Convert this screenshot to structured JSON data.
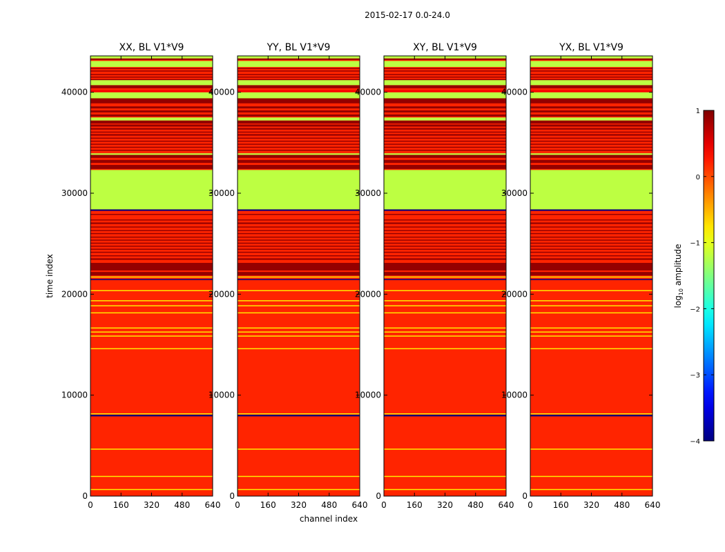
{
  "chart_data": {
    "type": "heatmap",
    "suptitle": "2015-02-17 0.0-24.0",
    "xlabel": "channel index",
    "ylabel": "time index",
    "colorbar_label": "log10 amplitude",
    "colormap": "jet",
    "color_range": [
      -4,
      1
    ],
    "xlim": [
      0,
      640
    ],
    "ylim": [
      0,
      43600
    ],
    "x_ticks": [
      0,
      160,
      320,
      480,
      640
    ],
    "y_ticks": [
      0,
      10000,
      20000,
      30000,
      40000
    ],
    "colorbar_ticks": [
      -4,
      -3,
      -2,
      -1,
      0,
      1
    ],
    "panels": [
      {
        "title": "XX, BL V1*V9"
      },
      {
        "title": "YY, BL V1*V9"
      },
      {
        "title": "XY, BL V1*V9"
      },
      {
        "title": "YX, BL V1*V9"
      }
    ],
    "base_level": 0.2,
    "bands": [
      {
        "t0": 600,
        "t1": 700,
        "level": -0.8
      },
      {
        "t0": 1900,
        "t1": 2000,
        "level": -0.8
      },
      {
        "t0": 4600,
        "t1": 4700,
        "level": -0.8
      },
      {
        "t0": 7900,
        "t1": 8050,
        "level": -4
      },
      {
        "t0": 8100,
        "t1": 8200,
        "level": -0.8
      },
      {
        "t0": 14550,
        "t1": 14650,
        "level": -0.8
      },
      {
        "t0": 15800,
        "t1": 15900,
        "level": -0.8
      },
      {
        "t0": 16200,
        "t1": 16300,
        "level": -0.8
      },
      {
        "t0": 16600,
        "t1": 16700,
        "level": -0.8
      },
      {
        "t0": 18100,
        "t1": 18200,
        "level": -0.8
      },
      {
        "t0": 18800,
        "t1": 18900,
        "level": -0.8
      },
      {
        "t0": 19300,
        "t1": 19400,
        "level": -0.8
      },
      {
        "t0": 20300,
        "t1": 20400,
        "level": -0.8
      },
      {
        "t0": 21400,
        "t1": 21500,
        "level": -4
      },
      {
        "t0": 21650,
        "t1": 21750,
        "level": -0.8
      },
      {
        "t0": 21850,
        "t1": 22200,
        "level": 0.9
      },
      {
        "t0": 22350,
        "t1": 23100,
        "level": 0.9
      },
      {
        "t0": 23400,
        "t1": 23550,
        "level": 0.9
      },
      {
        "t0": 23750,
        "t1": 23850,
        "level": 0.9
      },
      {
        "t0": 24100,
        "t1": 24200,
        "level": 0.9
      },
      {
        "t0": 24400,
        "t1": 24500,
        "level": 0.9
      },
      {
        "t0": 24700,
        "t1": 24800,
        "level": 0.9
      },
      {
        "t0": 25000,
        "t1": 25100,
        "level": 0.9
      },
      {
        "t0": 25300,
        "t1": 25400,
        "level": 0.9
      },
      {
        "t0": 25600,
        "t1": 25700,
        "level": 0.9
      },
      {
        "t0": 25950,
        "t1": 26050,
        "level": 0.9
      },
      {
        "t0": 26250,
        "t1": 26350,
        "level": 0.9
      },
      {
        "t0": 26600,
        "t1": 26700,
        "level": 0.9
      },
      {
        "t0": 26950,
        "t1": 27100,
        "level": 0.9
      },
      {
        "t0": 27300,
        "t1": 27400,
        "level": 0.9
      },
      {
        "t0": 27850,
        "t1": 27950,
        "level": 0.9
      },
      {
        "t0": 28250,
        "t1": 28400,
        "level": -4
      },
      {
        "t0": 28400,
        "t1": 32300,
        "level": -1.2
      },
      {
        "t0": 32400,
        "t1": 32800,
        "level": 0.9
      },
      {
        "t0": 33000,
        "t1": 33300,
        "level": 0.9
      },
      {
        "t0": 33500,
        "t1": 33800,
        "level": 0.9
      },
      {
        "t0": 33800,
        "t1": 33950,
        "level": -1.2
      },
      {
        "t0": 34200,
        "t1": 34300,
        "level": 0.9
      },
      {
        "t0": 34500,
        "t1": 34600,
        "level": 0.9
      },
      {
        "t0": 34800,
        "t1": 34900,
        "level": 0.9
      },
      {
        "t0": 35100,
        "t1": 35200,
        "level": 0.9
      },
      {
        "t0": 35400,
        "t1": 35500,
        "level": 0.9
      },
      {
        "t0": 35700,
        "t1": 35850,
        "level": 0.9
      },
      {
        "t0": 36000,
        "t1": 36100,
        "level": 0.9
      },
      {
        "t0": 36300,
        "t1": 36450,
        "level": 0.9
      },
      {
        "t0": 36600,
        "t1": 36800,
        "level": 0.9
      },
      {
        "t0": 36900,
        "t1": 37200,
        "level": 0.9
      },
      {
        "t0": 37200,
        "t1": 37500,
        "level": -1.2
      },
      {
        "t0": 37600,
        "t1": 37800,
        "level": 0.9
      },
      {
        "t0": 38000,
        "t1": 38200,
        "level": 0.9
      },
      {
        "t0": 38400,
        "t1": 38600,
        "level": 0.9
      },
      {
        "t0": 38900,
        "t1": 39400,
        "level": 0.9
      },
      {
        "t0": 39400,
        "t1": 40000,
        "level": -1.2
      },
      {
        "t0": 40000,
        "t1": 40200,
        "level": 0.4
      },
      {
        "t0": 40400,
        "t1": 40700,
        "level": 0.9
      },
      {
        "t0": 40700,
        "t1": 41200,
        "level": -1.2
      },
      {
        "t0": 41200,
        "t1": 41300,
        "level": 0.9
      },
      {
        "t0": 41450,
        "t1": 41550,
        "level": 0.9
      },
      {
        "t0": 41700,
        "t1": 41800,
        "level": 0.9
      },
      {
        "t0": 42050,
        "t1": 42150,
        "level": 0.9
      },
      {
        "t0": 42300,
        "t1": 42400,
        "level": 0.9
      },
      {
        "t0": 42500,
        "t1": 43100,
        "level": -1.2
      },
      {
        "t0": 43200,
        "t1": 43350,
        "level": 0.9
      },
      {
        "t0": 43350,
        "t1": 43600,
        "level": -1.2
      }
    ]
  }
}
